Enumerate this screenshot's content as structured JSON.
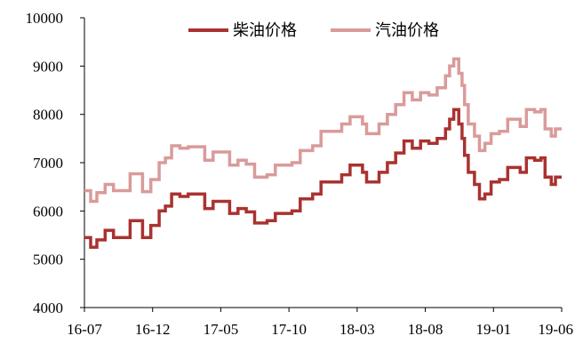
{
  "chart_data": {
    "type": "line",
    "title": "",
    "xlabel": "",
    "ylabel": "",
    "ylim": [
      4000,
      10000
    ],
    "yticks": [
      4000,
      5000,
      6000,
      7000,
      8000,
      9000,
      10000
    ],
    "xtick_labels": [
      "16-07",
      "16-12",
      "17-05",
      "17-10",
      "18-03",
      "18-08",
      "19-01",
      "19-06"
    ],
    "grid": false,
    "legend_position": "top-center",
    "series": [
      {
        "name": "柴油价格",
        "color": "#a93230",
        "points": [
          [
            0,
            5450
          ],
          [
            1.5,
            5250
          ],
          [
            3,
            5400
          ],
          [
            5,
            5600
          ],
          [
            7,
            5450
          ],
          [
            11,
            5800
          ],
          [
            14,
            5450
          ],
          [
            16,
            5700
          ],
          [
            18,
            6000
          ],
          [
            19.5,
            6100
          ],
          [
            21,
            6350
          ],
          [
            23,
            6300
          ],
          [
            25,
            6350
          ],
          [
            29,
            6050
          ],
          [
            31,
            6200
          ],
          [
            35,
            5950
          ],
          [
            37,
            6050
          ],
          [
            39,
            5980
          ],
          [
            41,
            5750
          ],
          [
            44,
            5800
          ],
          [
            46,
            5950
          ],
          [
            50,
            6000
          ],
          [
            52,
            6250
          ],
          [
            55,
            6350
          ],
          [
            57,
            6600
          ],
          [
            62,
            6750
          ],
          [
            64,
            6950
          ],
          [
            67,
            6800
          ],
          [
            68,
            6600
          ],
          [
            71,
            6800
          ],
          [
            73,
            7000
          ],
          [
            75,
            7200
          ],
          [
            77,
            7450
          ],
          [
            79,
            7300
          ],
          [
            81,
            7450
          ],
          [
            83,
            7400
          ],
          [
            85,
            7500
          ],
          [
            87,
            7700
          ],
          [
            88,
            7900
          ],
          [
            89,
            8100
          ],
          [
            89.6,
            8100
          ],
          [
            90.2,
            7800
          ],
          [
            91,
            7500
          ],
          [
            91.6,
            7150
          ],
          [
            92.5,
            6800
          ],
          [
            94,
            6550
          ],
          [
            95.2,
            6250
          ],
          [
            96.5,
            6350
          ],
          [
            98,
            6600
          ],
          [
            100,
            6650
          ],
          [
            102,
            6900
          ],
          [
            105,
            6800
          ],
          [
            106.5,
            7100
          ],
          [
            108.5,
            7050
          ],
          [
            110,
            7100
          ],
          [
            111,
            6700
          ],
          [
            112.5,
            6550
          ],
          [
            113.5,
            6700
          ],
          [
            115,
            6700
          ]
        ]
      },
      {
        "name": "汽油价格",
        "color": "#d99b9a",
        "points": [
          [
            0,
            6420
          ],
          [
            1.5,
            6200
          ],
          [
            3,
            6380
          ],
          [
            5,
            6550
          ],
          [
            7,
            6420
          ],
          [
            11,
            6770
          ],
          [
            14,
            6400
          ],
          [
            16,
            6650
          ],
          [
            18,
            7000
          ],
          [
            19.5,
            7100
          ],
          [
            21,
            7350
          ],
          [
            23,
            7300
          ],
          [
            25,
            7330
          ],
          [
            29,
            7050
          ],
          [
            31,
            7220
          ],
          [
            35,
            6950
          ],
          [
            37,
            7050
          ],
          [
            39,
            6970
          ],
          [
            41,
            6700
          ],
          [
            44,
            6750
          ],
          [
            46,
            6950
          ],
          [
            50,
            7000
          ],
          [
            52,
            7250
          ],
          [
            55,
            7350
          ],
          [
            57,
            7650
          ],
          [
            62,
            7800
          ],
          [
            64,
            7950
          ],
          [
            67,
            7800
          ],
          [
            68,
            7600
          ],
          [
            71,
            7800
          ],
          [
            73,
            8000
          ],
          [
            75,
            8200
          ],
          [
            77,
            8450
          ],
          [
            79,
            8300
          ],
          [
            81,
            8450
          ],
          [
            83,
            8400
          ],
          [
            85,
            8550
          ],
          [
            87,
            8800
          ],
          [
            88,
            9000
          ],
          [
            89,
            9150
          ],
          [
            89.6,
            9150
          ],
          [
            90.2,
            8850
          ],
          [
            91,
            8600
          ],
          [
            91.6,
            8200
          ],
          [
            92.5,
            7800
          ],
          [
            94,
            7550
          ],
          [
            95.2,
            7250
          ],
          [
            96.5,
            7400
          ],
          [
            98,
            7600
          ],
          [
            100,
            7650
          ],
          [
            102,
            7900
          ],
          [
            105,
            7750
          ],
          [
            106.5,
            8100
          ],
          [
            108.5,
            8050
          ],
          [
            110,
            8100
          ],
          [
            111,
            7700
          ],
          [
            112.5,
            7550
          ],
          [
            113.5,
            7700
          ],
          [
            115,
            7700
          ]
        ]
      }
    ]
  }
}
